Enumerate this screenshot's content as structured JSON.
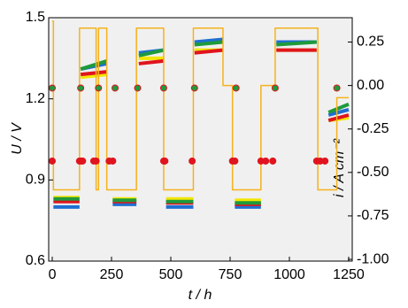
{
  "chart_data": {
    "type": "line",
    "xlabel": "t / h",
    "ylabel": "U / V",
    "y2label": "i / A cm⁻²",
    "xlim": [
      -15,
      1265
    ],
    "xticks": [
      0,
      250,
      500,
      750,
      1000,
      1250
    ],
    "ylim": [
      0.6,
      1.5
    ],
    "yticks": [
      0.6,
      0.9,
      1.2,
      1.5
    ],
    "y2lim": [
      -1.01,
      0.39
    ],
    "y2ticks": [
      {
        "value": -1.0,
        "label": "-1.00"
      },
      -0.75,
      {
        "value": -0.5,
        "label": "-0.50"
      },
      -0.25,
      {
        "value": 0,
        "label": "0.00"
      },
      0.25
    ],
    "background": "#f0f0f0",
    "series": [
      {
        "color": "#1f6fd1",
        "x": [
          5,
          115,
          117,
          120,
          230,
          243,
          255,
          355,
          360,
          365,
          470,
          475,
          480,
          595,
          597,
          600,
          720,
          745,
          770,
          880,
          912,
          945,
          1115,
          1140,
          1165,
          1250
        ],
        "values": [
          0.8,
          0.8,
          null,
          1.31,
          1.33,
          null,
          0.81,
          0.81,
          null,
          1.37,
          1.38,
          null,
          0.8,
          0.8,
          null,
          1.41,
          1.42,
          null,
          0.8,
          0.8,
          null,
          1.41,
          1.41,
          null,
          1.14,
          1.16
        ]
      },
      {
        "color": "#f2e600",
        "x": [
          5,
          115,
          117,
          120,
          230,
          243,
          255,
          355,
          360,
          365,
          470,
          475,
          480,
          595,
          597,
          600,
          720,
          745,
          770,
          880,
          912,
          945,
          1115,
          1140,
          1165,
          1250
        ],
        "values": [
          0.835,
          0.835,
          null,
          1.28,
          1.29,
          null,
          0.83,
          0.83,
          null,
          1.35,
          1.35,
          null,
          0.83,
          0.83,
          null,
          1.38,
          1.38,
          null,
          0.825,
          0.825,
          null,
          1.38,
          1.38,
          null,
          1.12,
          1.13
        ]
      },
      {
        "color": "#e0141e",
        "x": [
          5,
          115,
          117,
          120,
          230,
          243,
          255,
          355,
          360,
          365,
          470,
          475,
          480,
          595,
          597,
          600,
          720,
          745,
          770,
          880,
          912,
          945,
          1115,
          1140,
          1165,
          1250
        ],
        "values": [
          0.82,
          0.82,
          null,
          1.29,
          1.3,
          null,
          0.82,
          0.82,
          null,
          1.33,
          1.34,
          null,
          0.815,
          0.815,
          null,
          1.37,
          1.38,
          null,
          0.81,
          0.81,
          null,
          1.38,
          1.38,
          null,
          1.12,
          1.14
        ]
      },
      {
        "color": "#1e9a3c",
        "x": [
          5,
          115,
          117,
          120,
          230,
          243,
          255,
          355,
          360,
          365,
          470,
          475,
          480,
          595,
          597,
          600,
          720,
          745,
          770,
          880,
          912,
          945,
          1115,
          1140,
          1165,
          1250
        ],
        "values": [
          0.83,
          0.83,
          null,
          1.31,
          1.34,
          null,
          0.825,
          0.825,
          null,
          1.36,
          1.38,
          null,
          0.82,
          0.82,
          null,
          1.4,
          1.41,
          null,
          0.815,
          0.815,
          null,
          1.4,
          1.41,
          null,
          1.15,
          1.18
        ]
      },
      {
        "color": "#e0141e",
        "marker": true,
        "x": [
          0,
          115,
          122,
          128,
          175,
          185,
          240,
          255,
          470,
          475,
          590,
          760,
          770,
          880,
          900,
          930,
          1115,
          1130,
          1150
        ],
        "values": [
          0.97,
          0.97,
          0.97,
          0.97,
          0.97,
          0.97,
          0.97,
          0.97,
          0.97,
          0.97,
          0.97,
          0.97,
          0.97,
          0.97,
          0.97,
          0.97,
          0.97,
          0.97,
          0.97
        ]
      },
      {
        "color": "#1e9a3c",
        "marker": true,
        "x": [
          0,
          120,
          195,
          265,
          360,
          470,
          600,
          775,
          940,
          1200
        ],
        "values": [
          1.24,
          1.24,
          1.24,
          1.24,
          1.24,
          1.24,
          1.24,
          1.24,
          1.24,
          1.24
        ]
      },
      {
        "color": "#f5b21c",
        "axis": "y2",
        "x": [
          0,
          5,
          5,
          115,
          115,
          185,
          185,
          195,
          195,
          230,
          230,
          355,
          355,
          470,
          470,
          595,
          595,
          720,
          720,
          760,
          760,
          880,
          880,
          940,
          940,
          1120,
          1120,
          1200,
          1200,
          1250
        ],
        "values": [
          0.37,
          0.37,
          -0.6,
          -0.6,
          0.33,
          0.33,
          -0.6,
          -0.6,
          0.33,
          0.33,
          -0.6,
          -0.6,
          0.33,
          0.33,
          -0.6,
          -0.6,
          0.33,
          0.33,
          0,
          0,
          -0.6,
          -0.6,
          0,
          0,
          0.33,
          0.33,
          -0.6,
          -0.6,
          -0.07,
          -0.07
        ]
      }
    ]
  }
}
